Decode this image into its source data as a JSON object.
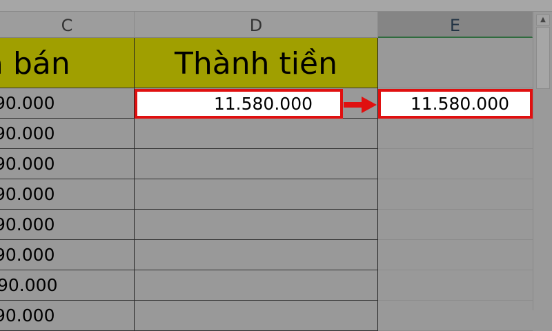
{
  "columns": [
    "C",
    "D",
    "E"
  ],
  "header_row": {
    "c": "á bán",
    "d": "Thành tiền",
    "e": ""
  },
  "c_values": [
    "90.000",
    "90.000",
    "90.000",
    "90.000",
    "90.000",
    "90.000",
    "90.000",
    "90.000"
  ],
  "d_first": "11.580.000",
  "e_first": "11.580.000",
  "colors": {
    "header_fill": "#a09f00",
    "highlight_border": "#e01010",
    "background": "#999999"
  },
  "icons": {
    "arrow": "arrow-right-icon",
    "scroll_up": "chevron-up-icon"
  }
}
